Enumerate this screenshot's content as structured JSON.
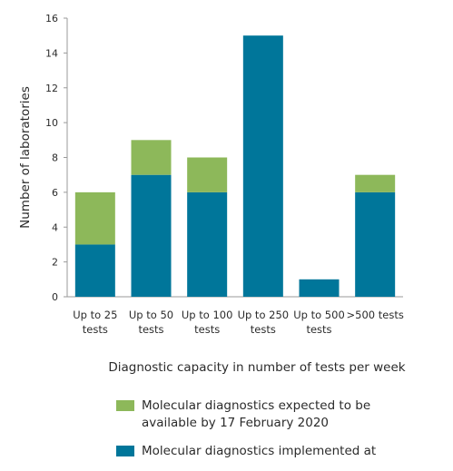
{
  "colors": {
    "planned": "#8db85a",
    "implemented": "#00769a",
    "axis": "#9a9a9a"
  },
  "chart_data": {
    "type": "bar",
    "stacked": true,
    "categories": [
      "Up to 25\ntests",
      "Up to 50\ntests",
      "Up to 100\ntests",
      "Up to 250\ntests",
      "Up to 500\ntests",
      ">500 tests"
    ],
    "series": [
      {
        "name": "Molecular diagnostics implemented at",
        "values": [
          3,
          7,
          6,
          15,
          1,
          6
        ],
        "color": "#00769a"
      },
      {
        "name": "Molecular diagnostics expected to be\navailable by 17 February 2020",
        "values": [
          3,
          2,
          2,
          0,
          0,
          1
        ],
        "color": "#8db85a"
      }
    ],
    "yticks": [
      0,
      2,
      4,
      6,
      8,
      10,
      12,
      14,
      16
    ],
    "ylim": [
      0,
      16
    ],
    "xlabel": "Diagnostic capacity in number of tests per week",
    "ylabel": "Number of laboratories",
    "grid": false,
    "legend_position": "bottom"
  }
}
